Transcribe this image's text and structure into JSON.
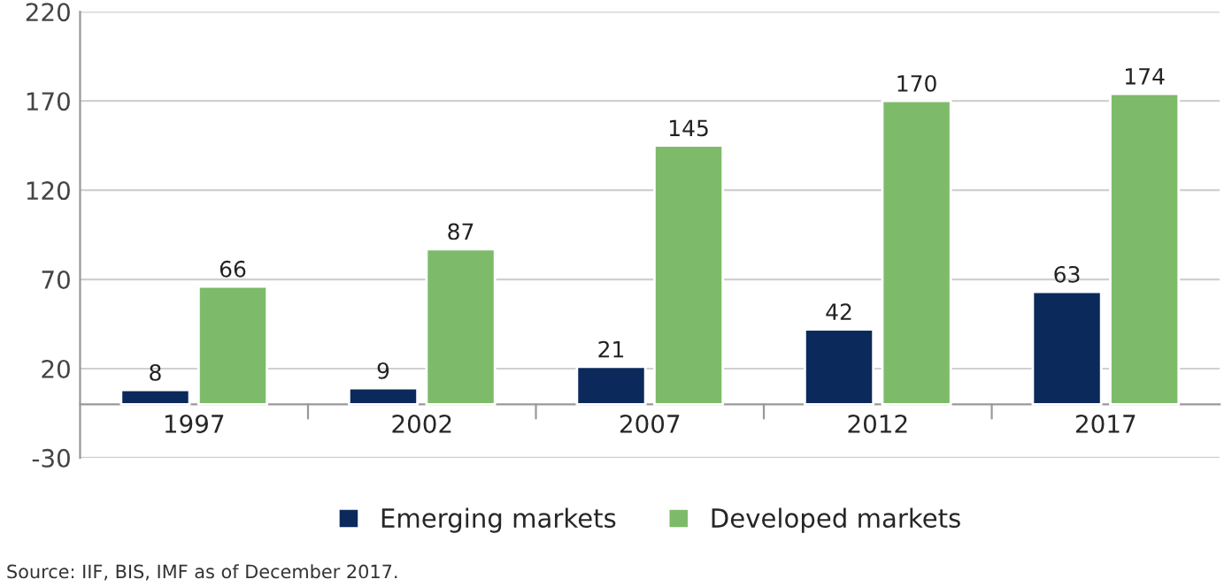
{
  "chart_data": {
    "type": "bar",
    "categories": [
      "1997",
      "2002",
      "2007",
      "2012",
      "2017"
    ],
    "series": [
      {
        "name": "Emerging markets",
        "color": "#0b2a5b",
        "values": [
          8,
          9,
          21,
          42,
          63
        ]
      },
      {
        "name": "Developed markets",
        "color": "#7dbb6a",
        "values": [
          66,
          87,
          145,
          170,
          174
        ]
      }
    ],
    "ylim": [
      -30,
      220
    ],
    "yticks": [
      -30,
      20,
      70,
      120,
      170,
      220
    ],
    "grid": "y",
    "legend": "bottom",
    "data_labels": true,
    "annotations": [
      "Source: IIF, BIS, IMF as of December 2017."
    ]
  }
}
